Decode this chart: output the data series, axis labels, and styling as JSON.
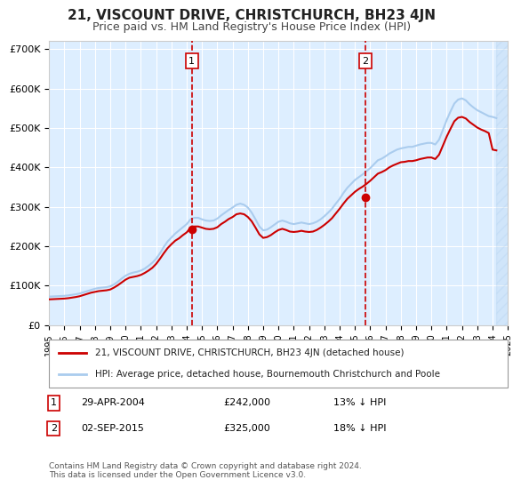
{
  "title": "21, VISCOUNT DRIVE, CHRISTCHURCH, BH23 4JN",
  "subtitle": "Price paid vs. HM Land Registry's House Price Index (HPI)",
  "background_color": "#ffffff",
  "plot_bg_color": "#ddeeff",
  "grid_color": "#ffffff",
  "ylabel_color": "#333333",
  "ylim": [
    0,
    720000
  ],
  "yticks": [
    0,
    100000,
    200000,
    300000,
    400000,
    500000,
    600000,
    700000
  ],
  "ytick_labels": [
    "£0",
    "£100K",
    "£200K",
    "£300K",
    "£400K",
    "£500K",
    "£600K",
    "£700K"
  ],
  "sale1_date_x": 2004.33,
  "sale1_price": 242000,
  "sale2_date_x": 2015.67,
  "sale2_price": 325000,
  "sale1_label": "1",
  "sale2_label": "2",
  "hpi_line_color": "#aaccee",
  "price_line_color": "#cc0000",
  "sale_marker_color": "#cc0000",
  "vline_color": "#cc0000",
  "legend_house": "21, VISCOUNT DRIVE, CHRISTCHURCH, BH23 4JN (detached house)",
  "legend_hpi": "HPI: Average price, detached house, Bournemouth Christchurch and Poole",
  "annotation1_date": "29-APR-2004",
  "annotation1_price": "£242,000",
  "annotation1_note": "13% ↓ HPI",
  "annotation2_date": "02-SEP-2015",
  "annotation2_price": "£325,000",
  "annotation2_note": "18% ↓ HPI",
  "footnote": "Contains HM Land Registry data © Crown copyright and database right 2024.\nThis data is licensed under the Open Government Licence v3.0.",
  "hpi_data": {
    "years": [
      1995.0,
      1995.25,
      1995.5,
      1995.75,
      1996.0,
      1996.25,
      1996.5,
      1996.75,
      1997.0,
      1997.25,
      1997.5,
      1997.75,
      1998.0,
      1998.25,
      1998.5,
      1998.75,
      1999.0,
      1999.25,
      1999.5,
      1999.75,
      2000.0,
      2000.25,
      2000.5,
      2000.75,
      2001.0,
      2001.25,
      2001.5,
      2001.75,
      2002.0,
      2002.25,
      2002.5,
      2002.75,
      2003.0,
      2003.25,
      2003.5,
      2003.75,
      2004.0,
      2004.25,
      2004.5,
      2004.75,
      2005.0,
      2005.25,
      2005.5,
      2005.75,
      2006.0,
      2006.25,
      2006.5,
      2006.75,
      2007.0,
      2007.25,
      2007.5,
      2007.75,
      2008.0,
      2008.25,
      2008.5,
      2008.75,
      2009.0,
      2009.25,
      2009.5,
      2009.75,
      2010.0,
      2010.25,
      2010.5,
      2010.75,
      2011.0,
      2011.25,
      2011.5,
      2011.75,
      2012.0,
      2012.25,
      2012.5,
      2012.75,
      2013.0,
      2013.25,
      2013.5,
      2013.75,
      2014.0,
      2014.25,
      2014.5,
      2014.75,
      2015.0,
      2015.25,
      2015.5,
      2015.75,
      2016.0,
      2016.25,
      2016.5,
      2016.75,
      2017.0,
      2017.25,
      2017.5,
      2017.75,
      2018.0,
      2018.25,
      2018.5,
      2018.75,
      2019.0,
      2019.25,
      2019.5,
      2019.75,
      2020.0,
      2020.25,
      2020.5,
      2020.75,
      2021.0,
      2021.25,
      2021.5,
      2021.75,
      2022.0,
      2022.25,
      2022.5,
      2022.75,
      2023.0,
      2023.25,
      2023.5,
      2023.75,
      2024.0,
      2024.25
    ],
    "values": [
      72000,
      72500,
      73000,
      73500,
      74000,
      75000,
      76500,
      78000,
      80000,
      83000,
      86000,
      89000,
      92000,
      94000,
      95000,
      96000,
      98000,
      103000,
      110000,
      118000,
      125000,
      130000,
      133000,
      135000,
      138000,
      143000,
      150000,
      158000,
      168000,
      182000,
      198000,
      212000,
      222000,
      232000,
      240000,
      248000,
      256000,
      268000,
      272000,
      272000,
      268000,
      265000,
      264000,
      265000,
      270000,
      278000,
      285000,
      292000,
      298000,
      305000,
      308000,
      305000,
      298000,
      285000,
      268000,
      250000,
      240000,
      242000,
      248000,
      255000,
      262000,
      265000,
      262000,
      258000,
      256000,
      258000,
      260000,
      258000,
      256000,
      258000,
      262000,
      268000,
      276000,
      285000,
      295000,
      308000,
      320000,
      335000,
      348000,
      358000,
      368000,
      375000,
      382000,
      390000,
      398000,
      408000,
      418000,
      422000,
      428000,
      435000,
      440000,
      445000,
      448000,
      450000,
      452000,
      452000,
      455000,
      458000,
      460000,
      462000,
      462000,
      458000,
      470000,
      495000,
      520000,
      542000,
      562000,
      572000,
      575000,
      570000,
      560000,
      552000,
      545000,
      540000,
      535000,
      530000,
      528000,
      525000
    ]
  },
  "price_data": {
    "years": [
      1995.0,
      1995.25,
      1995.5,
      1995.75,
      1996.0,
      1996.25,
      1996.5,
      1996.75,
      1997.0,
      1997.25,
      1997.5,
      1997.75,
      1998.0,
      1998.25,
      1998.5,
      1998.75,
      1999.0,
      1999.25,
      1999.5,
      1999.75,
      2000.0,
      2000.25,
      2000.5,
      2000.75,
      2001.0,
      2001.25,
      2001.5,
      2001.75,
      2002.0,
      2002.25,
      2002.5,
      2002.75,
      2003.0,
      2003.25,
      2003.5,
      2003.75,
      2004.0,
      2004.25,
      2004.5,
      2004.75,
      2005.0,
      2005.25,
      2005.5,
      2005.75,
      2006.0,
      2006.25,
      2006.5,
      2006.75,
      2007.0,
      2007.25,
      2007.5,
      2007.75,
      2008.0,
      2008.25,
      2008.5,
      2008.75,
      2009.0,
      2009.25,
      2009.5,
      2009.75,
      2010.0,
      2010.25,
      2010.5,
      2010.75,
      2011.0,
      2011.25,
      2011.5,
      2011.75,
      2012.0,
      2012.25,
      2012.5,
      2012.75,
      2013.0,
      2013.25,
      2013.5,
      2013.75,
      2014.0,
      2014.25,
      2014.5,
      2014.75,
      2015.0,
      2015.25,
      2015.5,
      2015.75,
      2016.0,
      2016.25,
      2016.5,
      2016.75,
      2017.0,
      2017.25,
      2017.5,
      2017.75,
      2018.0,
      2018.25,
      2018.5,
      2018.75,
      2019.0,
      2019.25,
      2019.5,
      2019.75,
      2020.0,
      2020.25,
      2020.5,
      2020.75,
      2021.0,
      2021.25,
      2021.5,
      2021.75,
      2022.0,
      2022.25,
      2022.5,
      2022.75,
      2023.0,
      2023.25,
      2023.5,
      2023.75,
      2024.0,
      2024.25
    ],
    "values": [
      65000,
      65500,
      66000,
      66500,
      67000,
      68000,
      69500,
      71000,
      73000,
      76000,
      79000,
      82000,
      84000,
      86000,
      87000,
      88000,
      90000,
      95000,
      101000,
      108000,
      115000,
      120000,
      122000,
      124000,
      127000,
      132000,
      138000,
      145000,
      155000,
      168000,
      182000,
      195000,
      205000,
      214000,
      220000,
      228000,
      235000,
      247000,
      250000,
      250000,
      247000,
      244000,
      243000,
      244000,
      248000,
      256000,
      262000,
      269000,
      274000,
      281000,
      283000,
      281000,
      274000,
      263000,
      247000,
      230000,
      221000,
      223000,
      228000,
      235000,
      241000,
      244000,
      241000,
      237000,
      236000,
      237000,
      239000,
      237000,
      236000,
      237000,
      241000,
      247000,
      254000,
      262000,
      271000,
      283000,
      295000,
      308000,
      320000,
      329000,
      338000,
      345000,
      351000,
      358000,
      366000,
      375000,
      384000,
      388000,
      393000,
      400000,
      405000,
      409000,
      413000,
      414000,
      416000,
      416000,
      418000,
      421000,
      423000,
      425000,
      425000,
      421000,
      432000,
      455000,
      478000,
      498000,
      517000,
      526000,
      528000,
      524000,
      515000,
      508000,
      501000,
      496000,
      492000,
      487000,
      445000,
      443000
    ]
  },
  "xlim": [
    1995.0,
    2025.0
  ],
  "xticks": [
    1995,
    1996,
    1997,
    1998,
    1999,
    2000,
    2001,
    2002,
    2003,
    2004,
    2005,
    2006,
    2007,
    2008,
    2009,
    2010,
    2011,
    2012,
    2013,
    2014,
    2015,
    2016,
    2017,
    2018,
    2019,
    2020,
    2021,
    2022,
    2023,
    2024,
    2025
  ],
  "hatch_color": "#aaccee",
  "hatch_alpha": 0.3
}
